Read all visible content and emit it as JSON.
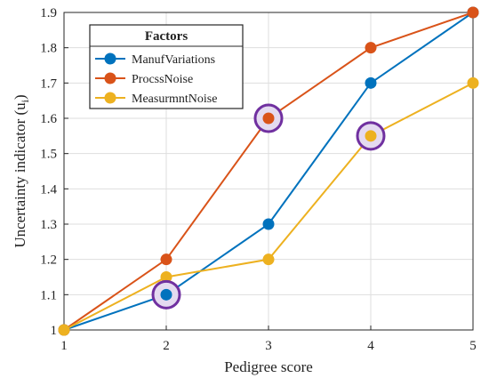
{
  "chart_data": {
    "type": "line",
    "title": "",
    "xlabel": "Pedigree score",
    "ylabel": "Uncertainty indicator (u",
    "ylabel_subscript": "i",
    "ylabel_suffix": ")",
    "x": [
      1,
      2,
      3,
      4,
      5
    ],
    "xlim": [
      1,
      5
    ],
    "ylim": [
      1,
      1.9
    ],
    "x_ticks": [
      "1",
      "2",
      "3",
      "4",
      "5"
    ],
    "y_ticks": [
      "1",
      "1.1",
      "1.2",
      "1.3",
      "1.4",
      "1.5",
      "1.6",
      "1.7",
      "1.8",
      "1.9"
    ],
    "grid": true,
    "legend": {
      "title": "Factors",
      "placement": "top-left"
    },
    "series": [
      {
        "name": "ManufVariations",
        "color": "#0072BD",
        "values": [
          1.0,
          1.1,
          1.3,
          1.7,
          1.9
        ]
      },
      {
        "name": "ProcssNoise",
        "color": "#D95319",
        "values": [
          1.0,
          1.2,
          1.6,
          1.8,
          1.9
        ]
      },
      {
        "name": "MeasurmntNoise",
        "color": "#EDB120",
        "values": [
          1.0,
          1.15,
          1.2,
          1.55,
          1.7
        ]
      }
    ],
    "highlights": [
      {
        "series": "ManufVariations",
        "x": 2,
        "y": 1.1
      },
      {
        "series": "ProcssNoise",
        "x": 3,
        "y": 1.6
      },
      {
        "series": "MeasurmntNoise",
        "x": 4,
        "y": 1.55
      }
    ],
    "highlight_color": "#7030A0"
  }
}
